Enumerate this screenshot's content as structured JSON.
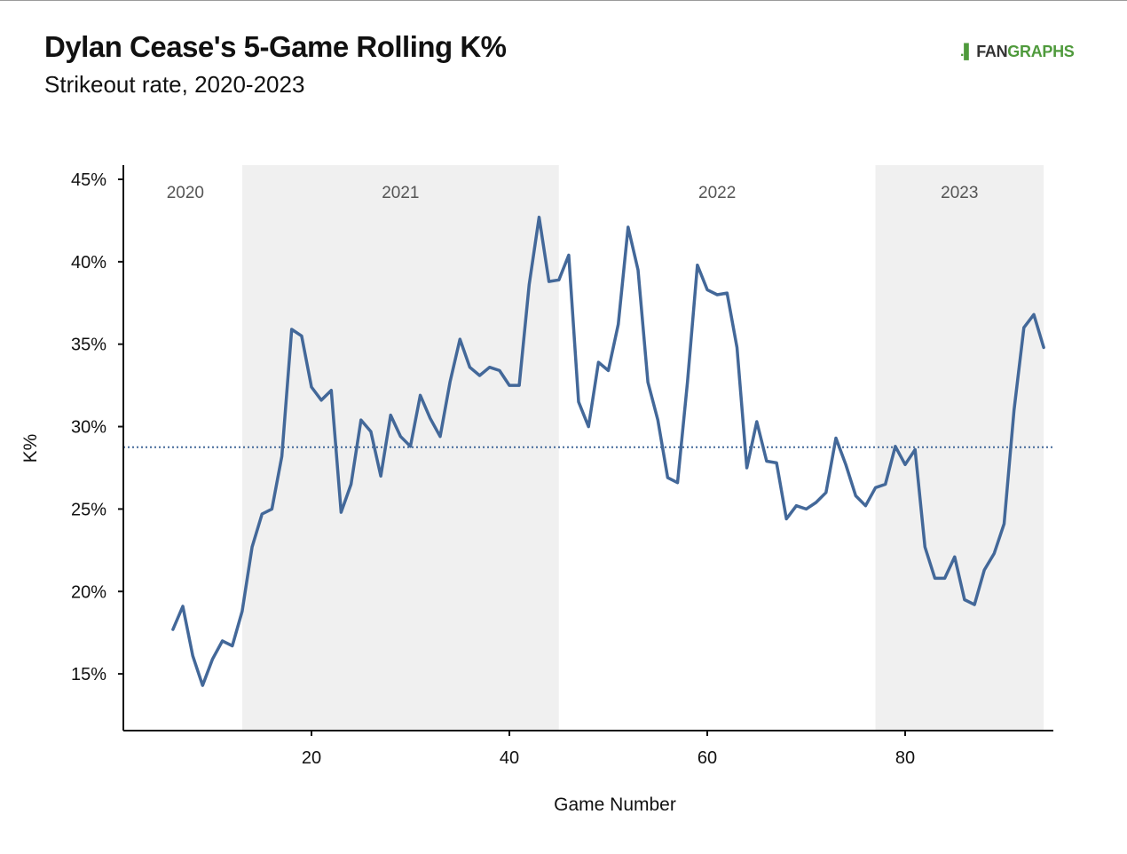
{
  "header": {
    "title": "Dylan Cease's 5-Game Rolling K%",
    "subtitle": "Strikeout rate, 2020-2023"
  },
  "logo": {
    "mark": ".▌",
    "fan": "FAN",
    "graphs": "GRAPHS"
  },
  "colors": {
    "line": "#436899",
    "band": "#f0f0f0",
    "axis": "#111111",
    "mean_line": "#436899",
    "logo_green": "#4f9a3c"
  },
  "chart_data": {
    "type": "line",
    "title": "Dylan Cease's 5-Game Rolling K%",
    "subtitle": "Strikeout rate, 2020-2023",
    "xlabel": "Game Number",
    "ylabel": "K%",
    "xlim": [
      1.5,
      95
    ],
    "ylim": [
      11.5,
      45.8
    ],
    "xticks": [
      20,
      40,
      60,
      80
    ],
    "yticks": [
      15,
      20,
      25,
      30,
      35,
      40,
      45
    ],
    "ytick_suffix": "%",
    "grid": false,
    "reference_line": {
      "y": 28.75,
      "style": "dotted"
    },
    "seasons": [
      {
        "label": "2020",
        "start": 1.5,
        "end": 13,
        "shaded": false
      },
      {
        "label": "2021",
        "start": 13,
        "end": 45,
        "shaded": true
      },
      {
        "label": "2022",
        "start": 45,
        "end": 77,
        "shaded": false
      },
      {
        "label": "2023",
        "start": 77,
        "end": 94,
        "shaded": true
      }
    ],
    "series": [
      {
        "x": [
          6,
          7,
          8,
          9,
          10,
          11,
          12,
          13,
          14,
          15,
          16,
          17,
          18,
          19,
          20,
          21,
          22,
          23,
          24,
          25,
          26,
          27,
          28,
          29,
          30,
          31,
          32,
          33,
          34,
          35,
          36,
          37,
          38,
          39,
          40,
          41,
          42,
          43,
          44,
          45,
          46,
          47,
          48,
          49,
          50,
          51,
          52,
          53,
          54,
          55,
          56,
          57,
          58,
          59,
          60,
          61,
          62,
          63,
          64,
          65,
          66,
          67,
          68,
          69,
          70,
          71,
          72,
          73,
          74,
          75,
          76,
          77,
          78,
          79,
          80,
          81,
          82,
          83,
          84,
          85,
          86,
          87,
          88,
          89,
          90,
          91,
          92,
          93,
          94
        ],
        "values": [
          17.7,
          19.1,
          16.1,
          14.3,
          15.9,
          17.0,
          16.7,
          18.8,
          22.7,
          24.7,
          25.0,
          28.2,
          35.9,
          35.5,
          32.4,
          31.6,
          32.2,
          24.8,
          26.5,
          30.4,
          29.7,
          27.0,
          30.7,
          29.4,
          28.8,
          31.9,
          30.5,
          29.4,
          32.7,
          35.3,
          33.6,
          33.1,
          33.6,
          33.4,
          32.5,
          32.5,
          38.6,
          42.7,
          38.8,
          38.9,
          40.4,
          31.5,
          30.0,
          33.9,
          33.4,
          36.2,
          42.1,
          39.5,
          32.7,
          30.4,
          26.9,
          26.6,
          32.7,
          39.8,
          38.3,
          38.0,
          38.1,
          34.8,
          27.5,
          30.3,
          27.9,
          27.8,
          24.4,
          25.2,
          25.0,
          25.4,
          26.0,
          29.3,
          27.7,
          25.8,
          25.2,
          26.3,
          26.5,
          28.8,
          27.7,
          28.6,
          22.7,
          20.8,
          20.8,
          22.1,
          19.5,
          19.2,
          21.3,
          22.3,
          24.1,
          31.0,
          36.0,
          36.8,
          34.8
        ]
      }
    ]
  }
}
